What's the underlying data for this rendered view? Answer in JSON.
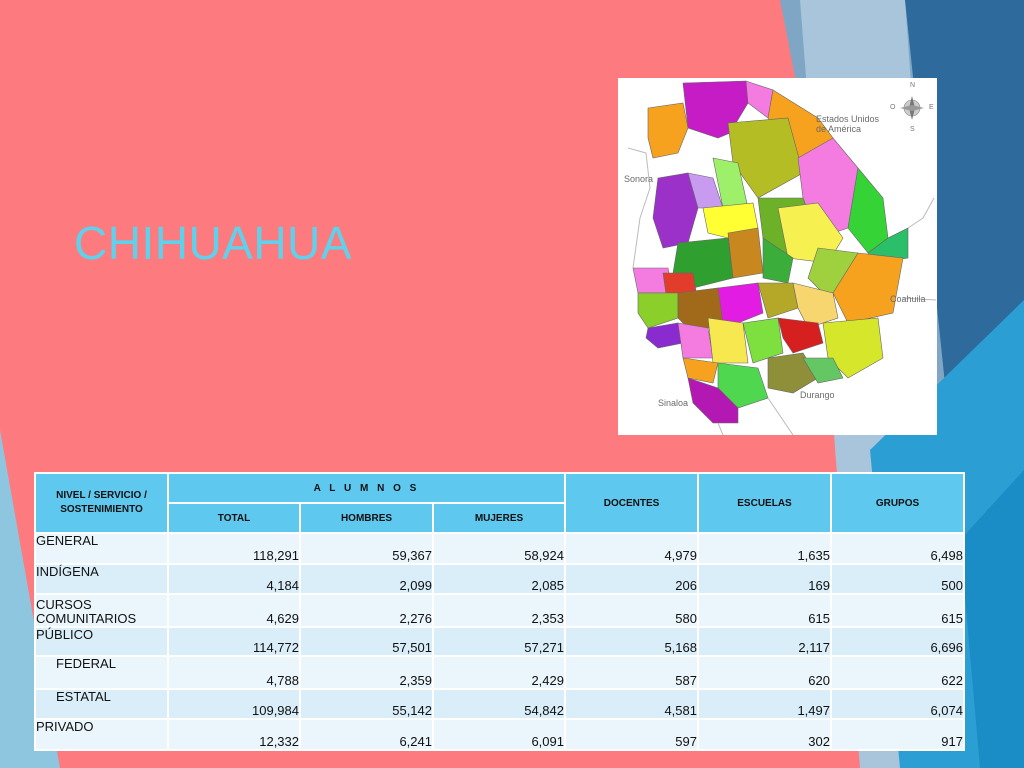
{
  "slide": {
    "title": "CHIHUAHUA"
  },
  "map": {
    "labels": {
      "usa": "Estados Unidos\nde América",
      "sonora": "Sonora",
      "coahuila": "Coahuila",
      "sinaloa": "Sinaloa",
      "durango": "Durango"
    },
    "compass": {
      "n": "N",
      "s": "S",
      "e": "E",
      "w": "O"
    }
  },
  "table": {
    "header": {
      "nivel": "NIVEL / SERVICIO / SOSTENIMIENTO",
      "alumnos": "A L U M N O S",
      "total": "TOTAL",
      "hombres": "HOMBRES",
      "mujeres": "MUJERES",
      "docentes": "DOCENTES",
      "escuelas": "ESCUELAS",
      "grupos": "GRUPOS"
    },
    "rows": [
      {
        "label": "GENERAL",
        "total": "118,291",
        "hombres": "59,367",
        "mujeres": "58,924",
        "docentes": "4,979",
        "escuelas": "1,635",
        "grupos": "6,498"
      },
      {
        "label": "INDÍGENA",
        "total": "4,184",
        "hombres": "2,099",
        "mujeres": "2,085",
        "docentes": "206",
        "escuelas": "169",
        "grupos": "500"
      },
      {
        "label": "CURSOS COMUNITARIOS",
        "total": "4,629",
        "hombres": "2,276",
        "mujeres": "2,353",
        "docentes": "580",
        "escuelas": "615",
        "grupos": "615"
      },
      {
        "label": "PÚBLICO",
        "total": "114,772",
        "hombres": "57,501",
        "mujeres": "57,271",
        "docentes": "5,168",
        "escuelas": "2,117",
        "grupos": "6,696"
      },
      {
        "label": "FEDERAL",
        "total": "4,788",
        "hombres": "2,359",
        "mujeres": "2,429",
        "docentes": "587",
        "escuelas": "620",
        "grupos": "622"
      },
      {
        "label": "ESTATAL",
        "total": "109,984",
        "hombres": "55,142",
        "mujeres": "54,842",
        "docentes": "4,581",
        "escuelas": "1,497",
        "grupos": "6,074"
      },
      {
        "label": "PRIVADO",
        "total": "12,332",
        "hombres": "6,241",
        "mujeres": "6,091",
        "docentes": "597",
        "escuelas": "302",
        "grupos": "917"
      }
    ]
  }
}
